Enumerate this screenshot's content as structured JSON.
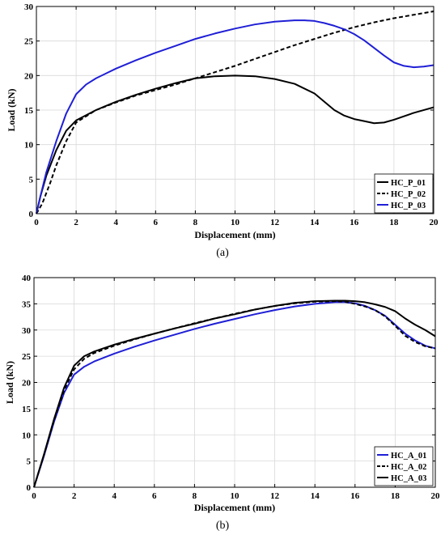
{
  "chart_data": [
    {
      "type": "line",
      "caption": "(a)",
      "xlabel": "Displacement (mm)",
      "ylabel": "Load (kN)",
      "xlim": [
        0,
        20
      ],
      "ylim": [
        0,
        30
      ],
      "xticks": [
        0,
        2,
        4,
        6,
        8,
        10,
        12,
        14,
        16,
        18,
        20
      ],
      "yticks": [
        0,
        5,
        10,
        15,
        20,
        25,
        30
      ],
      "grid": true,
      "legend_position": "bottom-right",
      "series": [
        {
          "name": "HC_P_01",
          "color": "#000000",
          "dash": "solid",
          "x": [
            0,
            0.2,
            0.5,
            1.0,
            1.5,
            2.0,
            3,
            4,
            5,
            6,
            7,
            8,
            9,
            10,
            11,
            12,
            13,
            14,
            14.5,
            15,
            15.5,
            16,
            16.5,
            17,
            17.5,
            18,
            19,
            20
          ],
          "y": [
            0,
            2.5,
            5.5,
            9.2,
            12.0,
            13.5,
            15.0,
            16.2,
            17.2,
            18.1,
            18.9,
            19.6,
            19.9,
            20.0,
            19.9,
            19.5,
            18.8,
            17.4,
            16.2,
            15.0,
            14.2,
            13.7,
            13.4,
            13.1,
            13.2,
            13.6,
            14.6,
            15.4
          ]
        },
        {
          "name": "HC_P_02",
          "color": "#000000",
          "dash": "dashed",
          "x": [
            0,
            0.3,
            0.7,
            1.0,
            1.5,
            2.0,
            3,
            4,
            5,
            6,
            7,
            8,
            9,
            10,
            11,
            12,
            13,
            14,
            15,
            16,
            17,
            18,
            19,
            20
          ],
          "y": [
            0,
            1.5,
            4.5,
            7.0,
            10.5,
            13.2,
            15.0,
            16.1,
            17.1,
            17.9,
            18.7,
            19.6,
            20.5,
            21.4,
            22.4,
            23.4,
            24.4,
            25.3,
            26.2,
            27.0,
            27.7,
            28.3,
            28.8,
            29.3
          ]
        },
        {
          "name": "HC_P_03",
          "color": "#1f1fd6",
          "dash": "solid",
          "x": [
            0,
            0.2,
            0.5,
            1.0,
            1.5,
            2.0,
            2.5,
            3,
            4,
            5,
            6,
            7,
            8,
            9,
            10,
            11,
            12,
            13,
            13.5,
            14,
            14.5,
            15,
            15.5,
            16,
            16.5,
            17,
            17.5,
            18,
            18.5,
            19,
            19.5,
            20
          ],
          "y": [
            0,
            2.5,
            6.0,
            10.5,
            14.5,
            17.3,
            18.7,
            19.6,
            21.0,
            22.2,
            23.3,
            24.3,
            25.3,
            26.1,
            26.8,
            27.4,
            27.8,
            28.0,
            28.0,
            27.9,
            27.6,
            27.2,
            26.7,
            26.0,
            25.1,
            24.0,
            22.9,
            21.9,
            21.4,
            21.2,
            21.3,
            21.5
          ]
        }
      ]
    },
    {
      "type": "line",
      "caption": "(b)",
      "xlabel": "Displacement (mm)",
      "ylabel": "Load (kN)",
      "xlim": [
        0,
        20
      ],
      "ylim": [
        0,
        40
      ],
      "xticks": [
        0,
        2,
        4,
        6,
        8,
        10,
        12,
        14,
        16,
        18,
        20
      ],
      "yticks": [
        0,
        5,
        10,
        15,
        20,
        25,
        30,
        35,
        40
      ],
      "grid": true,
      "legend_position": "bottom-right",
      "series": [
        {
          "name": "HC_A_01",
          "color": "#1f1fd6",
          "dash": "solid",
          "x": [
            0,
            0.5,
            1.0,
            1.5,
            2.0,
            2.5,
            3,
            4,
            5,
            6,
            7,
            8,
            9,
            10,
            11,
            12,
            13,
            14,
            15,
            15.5,
            16,
            16.5,
            17,
            17.5,
            18,
            18.5,
            19,
            19.5,
            20
          ],
          "y": [
            0,
            6.0,
            12.5,
            18.0,
            21.5,
            23.0,
            24.0,
            25.5,
            26.8,
            28.0,
            29.1,
            30.2,
            31.2,
            32.1,
            33.0,
            33.8,
            34.5,
            35.0,
            35.3,
            35.3,
            35.1,
            34.6,
            33.8,
            32.7,
            31.0,
            29.3,
            28.0,
            27.0,
            26.5
          ]
        },
        {
          "name": "HC_A_02",
          "color": "#000000",
          "dash": "dashed",
          "x": [
            0,
            0.5,
            1.0,
            1.5,
            2.0,
            2.5,
            3,
            4,
            5,
            6,
            7,
            8,
            9,
            10,
            11,
            12,
            13,
            14,
            15,
            15.5,
            16,
            16.5,
            17,
            17.5,
            18,
            18.5,
            19,
            19.5,
            20
          ],
          "y": [
            0,
            6.2,
            12.8,
            18.5,
            22.5,
            24.5,
            25.6,
            27.0,
            28.2,
            29.3,
            30.3,
            31.3,
            32.2,
            33.1,
            33.9,
            34.6,
            35.1,
            35.4,
            35.5,
            35.4,
            35.0,
            34.5,
            33.8,
            32.6,
            30.8,
            28.9,
            27.7,
            26.9,
            26.5
          ]
        },
        {
          "name": "HC_A_03",
          "color": "#000000",
          "dash": "solid",
          "x": [
            0,
            0.5,
            1.0,
            1.5,
            2.0,
            2.5,
            3,
            4,
            5,
            6,
            7,
            8,
            9,
            10,
            11,
            12,
            13,
            14,
            15,
            15.5,
            16,
            16.5,
            17,
            17.5,
            18,
            18.5,
            19,
            19.5,
            20
          ],
          "y": [
            0,
            6.3,
            13.0,
            19.0,
            23.2,
            25.0,
            25.9,
            27.2,
            28.3,
            29.3,
            30.3,
            31.2,
            32.2,
            33.0,
            33.9,
            34.6,
            35.2,
            35.5,
            35.6,
            35.6,
            35.5,
            35.3,
            34.9,
            34.4,
            33.6,
            32.2,
            31.0,
            30.0,
            28.8
          ]
        }
      ]
    }
  ]
}
